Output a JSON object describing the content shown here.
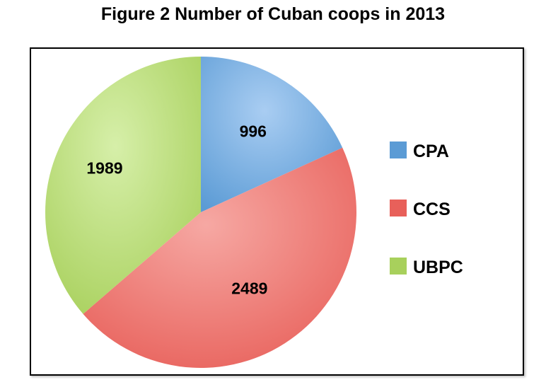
{
  "chart_data": {
    "type": "pie",
    "title": "Figure 2 Number of Cuban coops in 2013",
    "categories": [
      "CPA",
      "CCS",
      "UBPC"
    ],
    "values": [
      996,
      2489,
      1989
    ],
    "data_labels": [
      "996",
      "2489",
      "1989"
    ],
    "colors": [
      "#5b9bd5",
      "#e8605a",
      "#a8d05c"
    ],
    "highlight_colors": [
      "#a9cdf2",
      "#f6a8a3",
      "#d6efa9"
    ],
    "legend_position": "right",
    "start_angle_deg": 0,
    "direction": "clockwise"
  }
}
